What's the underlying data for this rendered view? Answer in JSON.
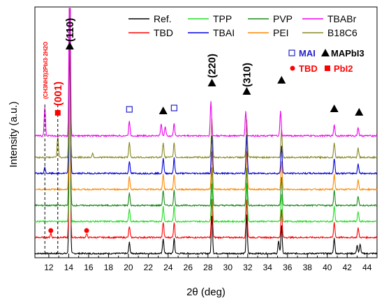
{
  "chart_data": {
    "type": "line",
    "xlabel": "2θ (deg)",
    "ylabel": "Intensity (a.u.)",
    "xlim": [
      10.6,
      45.0
    ],
    "x_ticks": [
      "12",
      "14",
      "16",
      "18",
      "20",
      "22",
      "24",
      "26",
      "28",
      "30",
      "32",
      "34",
      "36",
      "38",
      "40",
      "42",
      "44"
    ],
    "x_tick_values": [
      12,
      14,
      16,
      18,
      20,
      22,
      24,
      26,
      28,
      30,
      32,
      34,
      36,
      38,
      40,
      42,
      44
    ],
    "grid": false,
    "legend_position": "top-right",
    "peaks_common": [
      14.1,
      20.1,
      23.5,
      24.6,
      28.4,
      31.9,
      35.3,
      40.7,
      43.1
    ],
    "series": [
      {
        "name": "Ref.",
        "color": "#000000",
        "offset": 0,
        "peaks": [
          [
            14.1,
            330
          ],
          [
            20.1,
            16
          ],
          [
            23.5,
            22
          ],
          [
            24.6,
            22
          ],
          [
            28.4,
            55
          ],
          [
            31.9,
            55
          ],
          [
            35.1,
            18
          ],
          [
            35.4,
            40
          ],
          [
            40.7,
            22
          ],
          [
            43.0,
            12
          ],
          [
            43.3,
            14
          ]
        ]
      },
      {
        "name": "TBD",
        "color": "#ff0000",
        "offset": 23,
        "peaks": [
          [
            12.2,
            6
          ],
          [
            15.8,
            5
          ],
          [
            14.1,
            330
          ],
          [
            20.1,
            16
          ],
          [
            23.5,
            22
          ],
          [
            24.6,
            22
          ],
          [
            28.4,
            55
          ],
          [
            31.9,
            55
          ],
          [
            35.4,
            40
          ],
          [
            40.7,
            22
          ],
          [
            43.1,
            14
          ]
        ]
      },
      {
        "name": "TPP",
        "color": "#22dd22",
        "offset": 46,
        "peaks": [
          [
            14.1,
            330
          ],
          [
            20.1,
            18
          ],
          [
            23.5,
            22
          ],
          [
            24.6,
            22
          ],
          [
            28.4,
            55
          ],
          [
            31.9,
            55
          ],
          [
            35.4,
            40
          ],
          [
            40.7,
            22
          ],
          [
            43.1,
            14
          ]
        ]
      },
      {
        "name": "PVP",
        "color": "#1a8a1a",
        "offset": 69,
        "peaks": [
          [
            14.1,
            330
          ],
          [
            20.1,
            18
          ],
          [
            23.5,
            22
          ],
          [
            24.6,
            22
          ],
          [
            28.4,
            55
          ],
          [
            31.9,
            55
          ],
          [
            35.4,
            40
          ],
          [
            40.7,
            22
          ],
          [
            43.1,
            14
          ]
        ]
      },
      {
        "name": "PEI",
        "color": "#ff8800",
        "offset": 92,
        "peaks": [
          [
            14.1,
            330
          ],
          [
            20.1,
            18
          ],
          [
            23.5,
            22
          ],
          [
            24.6,
            22
          ],
          [
            28.4,
            55
          ],
          [
            31.9,
            55
          ],
          [
            35.4,
            40
          ],
          [
            40.7,
            22
          ],
          [
            43.1,
            14
          ]
        ]
      },
      {
        "name": "TBAI",
        "color": "#0000dd",
        "offset": 115,
        "peaks": [
          [
            11.6,
            8
          ],
          [
            14.1,
            330
          ],
          [
            20.1,
            18
          ],
          [
            23.5,
            22
          ],
          [
            24.6,
            22
          ],
          [
            28.4,
            55
          ],
          [
            31.9,
            55
          ],
          [
            35.4,
            40
          ],
          [
            40.7,
            22
          ],
          [
            43.1,
            14
          ]
        ]
      },
      {
        "name": "B18C6",
        "color": "#888822",
        "offset": 138,
        "peaks": [
          [
            12.9,
            30
          ],
          [
            14.1,
            330
          ],
          [
            16.4,
            6
          ],
          [
            20.1,
            22
          ],
          [
            23.5,
            22
          ],
          [
            24.6,
            22
          ],
          [
            28.4,
            55
          ],
          [
            31.9,
            55
          ],
          [
            35.4,
            40
          ],
          [
            40.7,
            22
          ],
          [
            43.1,
            14
          ]
        ]
      },
      {
        "name": "TBABr",
        "color": "#ee00ee",
        "offset": 169,
        "peaks": [
          [
            11.6,
            40
          ],
          [
            14.1,
            330
          ],
          [
            20.1,
            22
          ],
          [
            23.3,
            18
          ],
          [
            23.7,
            14
          ],
          [
            24.6,
            18
          ],
          [
            28.3,
            50
          ],
          [
            31.8,
            35
          ],
          [
            35.3,
            35
          ],
          [
            40.7,
            16
          ],
          [
            43.1,
            12
          ]
        ]
      }
    ],
    "annotations": [
      {
        "text": "(110)",
        "x": 14.1,
        "marker": "triangle"
      },
      {
        "text": "(220)",
        "x": 28.4,
        "marker": "triangle"
      },
      {
        "text": "(310)",
        "x": 31.9,
        "marker": "triangle"
      },
      {
        "text": "(001)",
        "x": 12.9,
        "marker": "square"
      },
      {
        "text": "(CH3NH3)2PbI3·2H2O",
        "x": 11.6
      }
    ],
    "legend_markers": {
      "mai": {
        "label": "MAI",
        "color": "#2222cc",
        "marker": "open-square"
      },
      "mapbi3": {
        "label": "MAPbI3",
        "color": "#000000",
        "marker": "triangle"
      },
      "tbd": {
        "label": "TBD",
        "color": "#ff0000",
        "marker": "circle"
      },
      "pbi2": {
        "label": "PbI2",
        "color": "#ff0000",
        "marker": "square"
      }
    }
  }
}
